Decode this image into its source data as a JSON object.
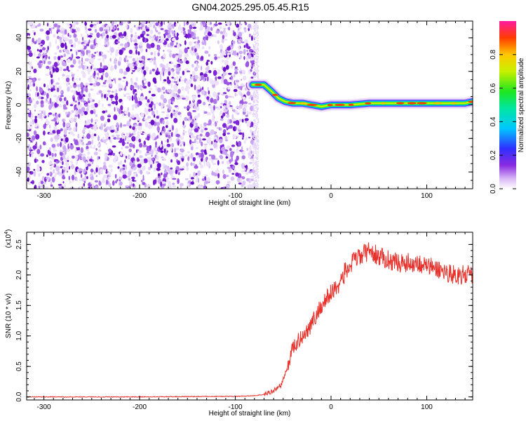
{
  "figure": {
    "title": "GN04.2025.295.05.45.R15"
  },
  "chart_data": [
    {
      "type": "heatmap",
      "xlabel": "Height of straight line (km)",
      "ylabel": "Frequency (Hz)",
      "xlim": [
        -318,
        148
      ],
      "ylim": [
        -50,
        50
      ],
      "xticks": [
        -300,
        -200,
        -100,
        0,
        100
      ],
      "yticks": [
        -40,
        -20,
        0,
        20,
        40
      ],
      "noise_region_x": [
        -318,
        -80
      ],
      "signal_track": {
        "x": [
          -82,
          -70,
          -62,
          -55,
          -48,
          -40,
          -30,
          -20,
          -10,
          0,
          20,
          40,
          60,
          80,
          100,
          120,
          140,
          148
        ],
        "y": [
          12,
          12,
          8,
          4,
          2,
          1,
          1,
          0,
          -1,
          0,
          0,
          1,
          1,
          1,
          1,
          1,
          1,
          2
        ]
      },
      "colorbar": {
        "label": "Normalized spectral amplitude",
        "range": [
          0.0,
          1.0
        ],
        "ticks": [
          0.0,
          0.2,
          0.4,
          0.6,
          0.8
        ],
        "tick_labels": [
          "0.0",
          "0.2",
          "0.4",
          "0.6",
          "0.8"
        ]
      }
    },
    {
      "type": "line",
      "xlabel": "Height of straight line (km)",
      "ylabel": "SNR (10 * v/v)",
      "multiplier_label": "(x10",
      "multiplier_exp": "4",
      "multiplier_close": ")",
      "xlim": [
        -318,
        148
      ],
      "ylim": [
        -0.05,
        2.7
      ],
      "xticks": [
        -300,
        -200,
        -100,
        0,
        100
      ],
      "yticks": [
        0.0,
        0.5,
        1.0,
        1.5,
        2.0,
        2.5
      ],
      "ytick_labels": [
        "0.0",
        "0.5",
        "1.0",
        "1.5",
        "2.0",
        "2.5"
      ],
      "series": [
        {
          "color": "#e8302a",
          "x": [
            -318,
            -200,
            -100,
            -80,
            -70,
            -60,
            -52,
            -45,
            -42,
            -40,
            -35,
            -30,
            -25,
            -20,
            -15,
            -10,
            -5,
            0,
            5,
            10,
            15,
            20,
            25,
            30,
            35,
            40,
            45,
            50,
            60,
            70,
            80,
            90,
            100,
            110,
            120,
            130,
            140,
            148
          ],
          "y": [
            0.0,
            0.0,
            0.01,
            0.02,
            0.04,
            0.1,
            0.2,
            0.5,
            0.7,
            0.8,
            0.9,
            1.0,
            1.1,
            1.2,
            1.35,
            1.5,
            1.6,
            1.7,
            1.8,
            1.9,
            2.05,
            2.15,
            2.25,
            2.3,
            2.35,
            2.4,
            2.35,
            2.3,
            2.25,
            2.2,
            2.2,
            2.2,
            2.15,
            2.1,
            2.05,
            2.0,
            2.0,
            2.0
          ]
        }
      ]
    }
  ]
}
